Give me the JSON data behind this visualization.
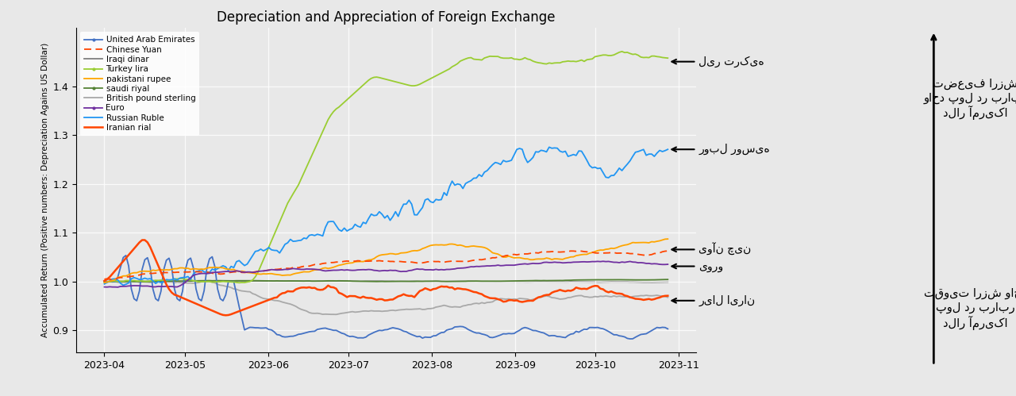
{
  "title": "Depreciation and Appreciation of Foreign Exchange",
  "ylabel": "Accumulated Return (Positive numbers: Depreciation Agains US Dollar)",
  "background_color": "#e8e8e8",
  "plot_bg_color": "#e8e8e8",
  "ylim": [
    0.855,
    1.52
  ],
  "yticks": [
    0.9,
    1.0,
    1.1,
    1.2,
    1.3,
    1.4
  ],
  "legend_entries": [
    {
      "label": "United Arab Emirates",
      "color": "#4472c4",
      "linestyle": "-",
      "marker": "."
    },
    {
      "label": "Chinese Yuan",
      "color": "#ff4500",
      "linestyle": "--"
    },
    {
      "label": "Iraqi dinar",
      "color": "#7f7f7f",
      "linestyle": "-"
    },
    {
      "label": "Turkey lira",
      "color": "#9acd32",
      "linestyle": "-",
      "marker": "."
    },
    {
      "label": "pakistani rupee",
      "color": "#ffa500",
      "linestyle": "-"
    },
    {
      "label": "saudi riyal",
      "color": "#548235",
      "linestyle": "-",
      "marker": "."
    },
    {
      "label": "British pound sterling",
      "color": "#a9a9a9",
      "linestyle": "-"
    },
    {
      "label": "Euro",
      "color": "#7030a0",
      "linestyle": "-",
      "marker": "."
    },
    {
      "label": "Russian Ruble",
      "color": "#2196F3",
      "linestyle": "-"
    },
    {
      "label": "Iranian rial",
      "color": "#ff4500",
      "linestyle": "-"
    }
  ],
  "fa_turkey": "لیر ترکیه",
  "fa_ruble": "روبل روسیه",
  "fa_yuan": "یوآن چین",
  "fa_euro": "یورو",
  "fa_iran": "ریال ایران",
  "fa_deprec": "تضعیف ارزش\nواحد پول در برابر\nدلار آمریکا",
  "fa_appre": "تقویت ارزش واحد\nپول در برابر\nدلار آمریکا",
  "n_points": 210,
  "date_start": "2023-04-01",
  "date_end": "2023-10-28"
}
